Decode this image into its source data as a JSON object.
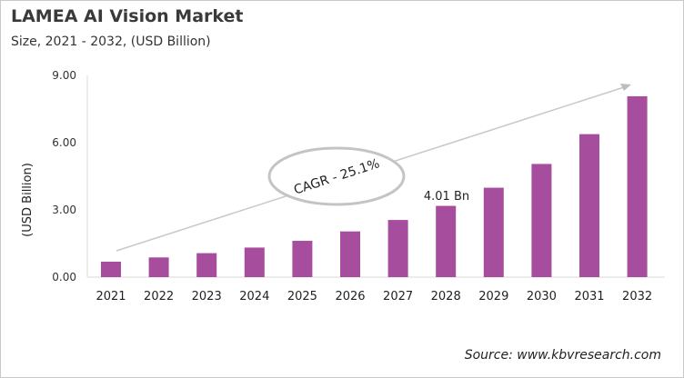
{
  "chart_data": {
    "type": "bar",
    "title": "LAMEA AI Vision Market",
    "subtitle": "Size, 2021 - 2032, (USD Billion)",
    "ylabel": "(USD Billion)",
    "xlabel": "",
    "categories": [
      "2021",
      "2022",
      "2023",
      "2024",
      "2025",
      "2026",
      "2027",
      "2028",
      "2029",
      "2030",
      "2031",
      "2032"
    ],
    "values": [
      0.69,
      0.88,
      1.07,
      1.32,
      1.62,
      2.04,
      2.55,
      3.18,
      3.99,
      5.05,
      6.38,
      8.07
    ],
    "ylim": [
      0,
      9
    ],
    "yticks": [
      "0.00",
      "3.00",
      "6.00",
      "9.00"
    ],
    "grid": false,
    "bar_color": "#a64d9e",
    "annotations": {
      "value_label": "4.01 Bn",
      "cagr": "CAGR - 25.1%"
    },
    "source": "Source: www.kbvresearch.com"
  }
}
